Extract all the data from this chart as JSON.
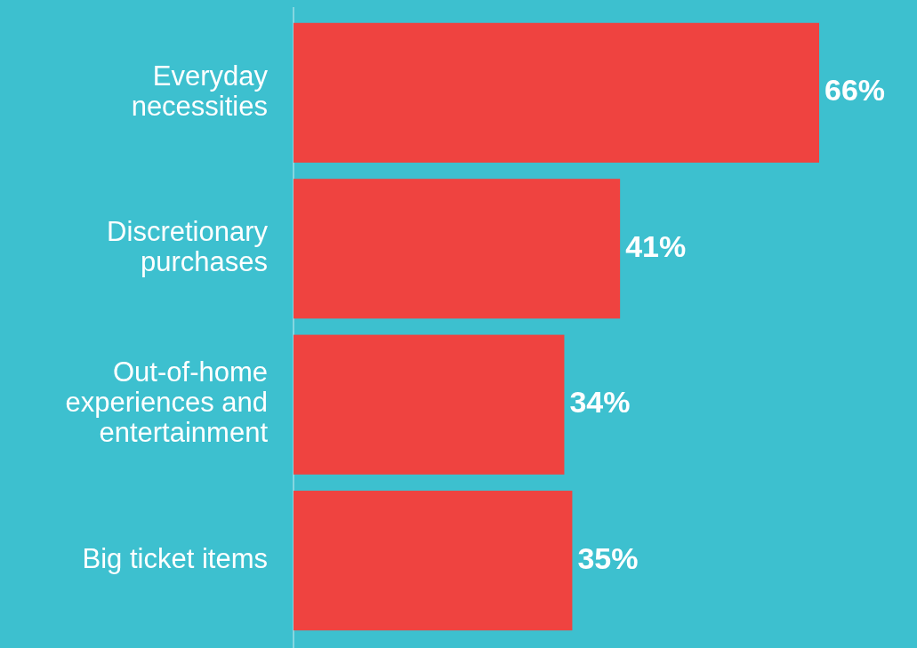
{
  "chart_data": {
    "type": "bar",
    "orientation": "horizontal",
    "categories": [
      "Everyday necessities",
      "Discretionary purchases",
      "Out-of-home experiences and entertainment",
      "Big ticket items"
    ],
    "values": [
      66,
      41,
      34,
      35
    ],
    "value_labels": [
      "66%",
      "41%",
      "34%",
      "35%"
    ],
    "color": "#ef4340"
  }
}
